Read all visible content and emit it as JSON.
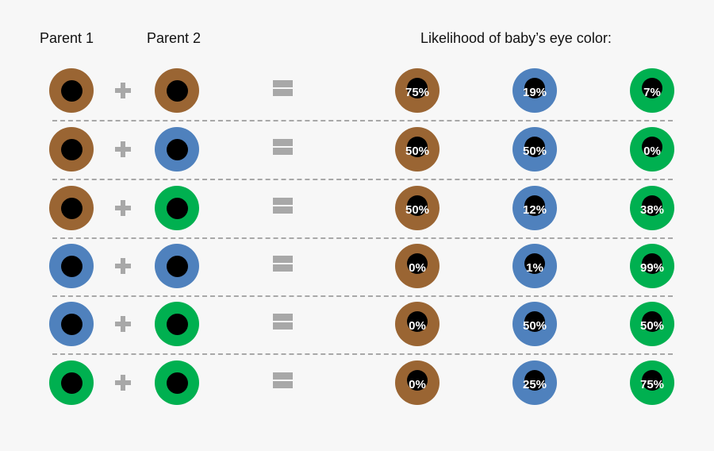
{
  "headers": {
    "parent1": "Parent 1",
    "parent2": "Parent 2",
    "likelihood": "Likelihood of baby’s eye color:"
  },
  "colors": {
    "brown": "#9a6533",
    "blue": "#4f81bd",
    "green": "#00b050",
    "pupil": "#000000",
    "operator": "#a8a8a8",
    "background": "#f7f7f7"
  },
  "child_columns": [
    "brown",
    "blue",
    "green"
  ],
  "rows": [
    {
      "parent1": "brown",
      "parent2": "brown",
      "brown": "75%",
      "blue": "19%",
      "green": "7%"
    },
    {
      "parent1": "brown",
      "parent2": "blue",
      "brown": "50%",
      "blue": "50%",
      "green": "0%"
    },
    {
      "parent1": "brown",
      "parent2": "green",
      "brown": "50%",
      "blue": "12%",
      "green": "38%"
    },
    {
      "parent1": "blue",
      "parent2": "blue",
      "brown": "0%",
      "blue": "1%",
      "green": "99%"
    },
    {
      "parent1": "blue",
      "parent2": "green",
      "brown": "0%",
      "blue": "50%",
      "green": "50%"
    },
    {
      "parent1": "green",
      "parent2": "green",
      "brown": "0%",
      "blue": "25%",
      "green": "75%"
    }
  ],
  "chart_data": {
    "type": "table",
    "title": "Likelihood of baby’s eye color",
    "columns": [
      "Parent 1",
      "Parent 2",
      "Brown",
      "Blue",
      "Green"
    ],
    "rows": [
      [
        "Brown",
        "Brown",
        75,
        19,
        7
      ],
      [
        "Brown",
        "Blue",
        50,
        50,
        0
      ],
      [
        "Brown",
        "Green",
        50,
        12,
        38
      ],
      [
        "Blue",
        "Blue",
        0,
        1,
        99
      ],
      [
        "Blue",
        "Green",
        0,
        50,
        50
      ],
      [
        "Green",
        "Green",
        0,
        25,
        75
      ]
    ]
  }
}
